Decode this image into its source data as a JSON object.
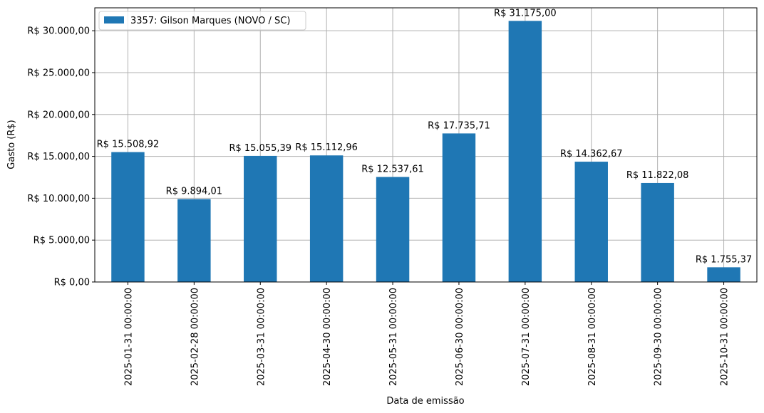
{
  "chart_data": {
    "type": "bar",
    "title": "",
    "xlabel": "Data de emissão",
    "ylabel": "Gasto (R$)",
    "categories": [
      "2025-01-31 00:00:00",
      "2025-02-28 00:00:00",
      "2025-03-31 00:00:00",
      "2025-04-30 00:00:00",
      "2025-05-31 00:00:00",
      "2025-06-30 00:00:00",
      "2025-07-31 00:00:00",
      "2025-08-31 00:00:00",
      "2025-09-30 00:00:00",
      "2025-10-31 00:00:00"
    ],
    "series": [
      {
        "name": "3357: Gilson Marques (NOVO / SC)",
        "color": "#1f77b4",
        "values": [
          15508.92,
          9894.01,
          15055.39,
          15112.96,
          12537.61,
          17735.71,
          31175.0,
          14362.67,
          11822.08,
          1755.37
        ],
        "labels": [
          "R$ 15.508,92",
          "R$ 9.894,01",
          "R$ 15.055,39",
          "R$ 15.112,96",
          "R$ 12.537,61",
          "R$ 17.735,71",
          "R$ 31.175,00",
          "R$ 14.362,67",
          "R$ 11.822,08",
          "R$ 1.755,37"
        ]
      }
    ],
    "ylim": [
      0,
      32733.75
    ],
    "yticks": [
      0,
      5000,
      10000,
      15000,
      20000,
      25000,
      30000
    ],
    "ytick_labels": [
      "R$ 0,00",
      "R$ 5.000,00",
      "R$ 10.000,00",
      "R$ 15.000,00",
      "R$ 20.000,00",
      "R$ 25.000,00",
      "R$ 30.000,00"
    ],
    "grid": true,
    "legend_position": "top-left"
  }
}
